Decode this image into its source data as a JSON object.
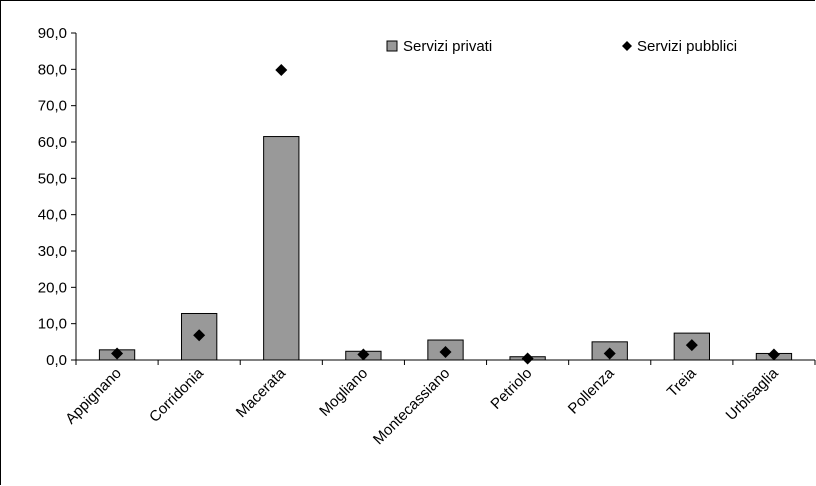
{
  "chart_data": {
    "type": "bar",
    "categories": [
      "Appignano",
      "Corridonia",
      "Macerata",
      "Mogliano",
      "Montecassiano",
      "Petriolo",
      "Pollenza",
      "Treia",
      "Urbisaglia"
    ],
    "series": [
      {
        "name": "Servizi privati",
        "mark": "bar",
        "color": "#999999",
        "values": [
          2.8,
          12.8,
          61.5,
          2.4,
          5.5,
          0.9,
          5.0,
          7.4,
          1.8
        ]
      },
      {
        "name": "Servizi pubblici",
        "mark": "diamond",
        "color": "#000000",
        "values": [
          1.8,
          6.8,
          79.8,
          1.5,
          2.2,
          0.4,
          1.8,
          4.1,
          1.5
        ]
      }
    ],
    "y_ticks": [
      "0,0",
      "10,0",
      "20,0",
      "30,0",
      "40,0",
      "50,0",
      "60,0",
      "70,0",
      "80,0",
      "90,0"
    ],
    "ylim": [
      0,
      90
    ],
    "grid": false,
    "legend_position": "top-right"
  }
}
